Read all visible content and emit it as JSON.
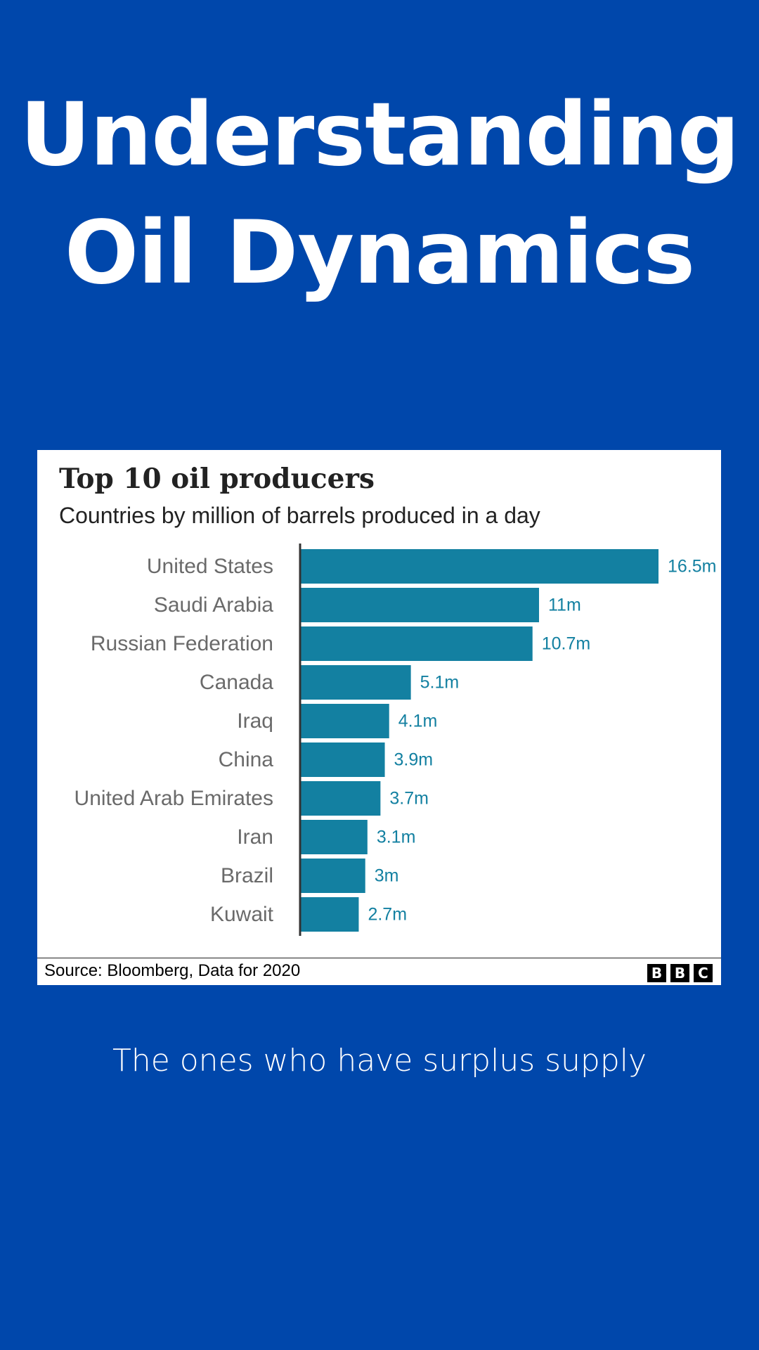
{
  "page": {
    "background_color": "#0047ab",
    "headline_lines": [
      "Understanding",
      "Oil Dynamics"
    ],
    "tagline": "The ones who have surplus supply"
  },
  "chart_card": {
    "source": "Source: Bloomberg, Data for 2020",
    "logo_letters": [
      "B",
      "B",
      "C"
    ]
  },
  "chart_data": {
    "type": "bar",
    "orientation": "horizontal",
    "title": "Top 10 oil producers",
    "subtitle": "Countries by million of barrels produced in a day",
    "unit": "million barrels per day",
    "bar_color": "#1380a1",
    "categories": [
      "United States",
      "Saudi Arabia",
      "Russian Federation",
      "Canada",
      "Iraq",
      "China",
      "United Arab Emirates",
      "Iran",
      "Brazil",
      "Kuwait"
    ],
    "values": [
      16.5,
      11,
      10.7,
      5.1,
      4.1,
      3.9,
      3.7,
      3.1,
      3,
      2.7
    ],
    "value_labels": [
      "16.5m",
      "11m",
      "10.7m",
      "5.1m",
      "4.1m",
      "3.9m",
      "3.7m",
      "3.1m",
      "3m",
      "2.7m"
    ],
    "xlim": [
      0,
      16.5
    ],
    "grid": false,
    "legend": "none"
  }
}
